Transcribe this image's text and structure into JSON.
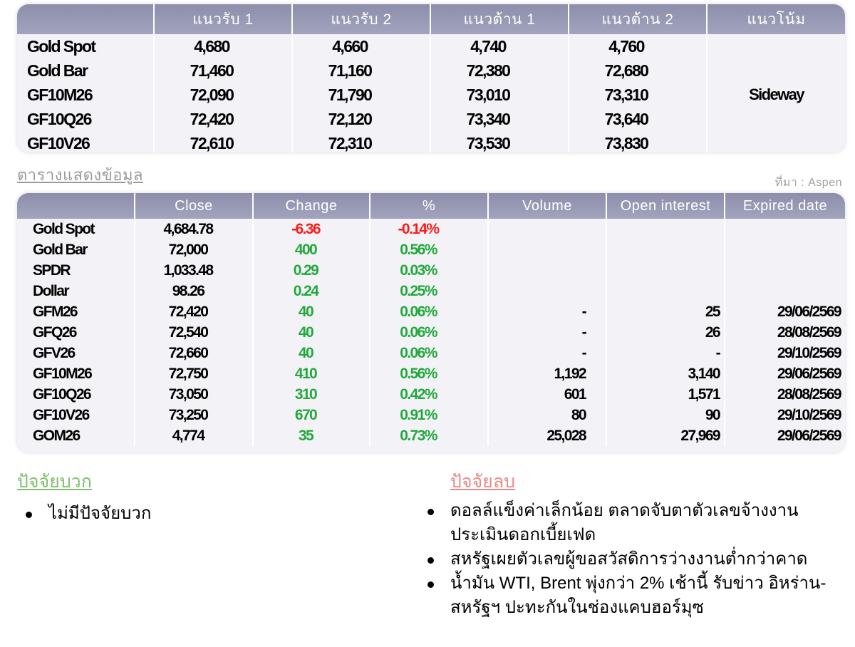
{
  "levels": {
    "headers": [
      "",
      "แนวรับ 1",
      "แนวรับ 2",
      "แนวต้าน 1",
      "แนวต้าน 2",
      "แนวโน้ม"
    ],
    "rows": [
      {
        "name": "Gold Spot",
        "s1": "4,680",
        "s2": "4,660",
        "r1": "4,740",
        "r2": "4,760"
      },
      {
        "name": "Gold Bar",
        "s1": "71,460",
        "s2": "71,160",
        "r1": "72,380",
        "r2": "72,680"
      },
      {
        "name": "GF10M26",
        "s1": "72,090",
        "s2": "71,790",
        "r1": "73,010",
        "r2": "73,310"
      },
      {
        "name": "GF10Q26",
        "s1": "72,420",
        "s2": "72,120",
        "r1": "73,340",
        "r2": "73,640"
      },
      {
        "name": "GF10V26",
        "s1": "72,610",
        "s2": "72,310",
        "r1": "73,530",
        "r2": "73,830"
      }
    ],
    "trend": "Sideway"
  },
  "caption": "ตารางแสดงข้อมูล",
  "source": "ที่มา : Aspen",
  "market": {
    "headers": [
      "",
      "Close",
      "Change",
      "%",
      "Volume",
      "Open interest",
      "Expired date"
    ],
    "rows": [
      {
        "name": "Gold Spot",
        "close": "4,684.78",
        "change": "-6.36",
        "pct": "-0.14%",
        "volume": "",
        "oi": "",
        "expiry": "",
        "dir": "neg"
      },
      {
        "name": "Gold Bar",
        "close": "72,000",
        "change": "400",
        "pct": "0.56%",
        "volume": "",
        "oi": "",
        "expiry": "",
        "dir": "pos"
      },
      {
        "name": "SPDR",
        "close": "1,033.48",
        "change": "0.29",
        "pct": "0.03%",
        "volume": "",
        "oi": "",
        "expiry": "",
        "dir": "pos"
      },
      {
        "name": "Dollar",
        "close": "98.26",
        "change": "0.24",
        "pct": "0.25%",
        "volume": "",
        "oi": "",
        "expiry": "",
        "dir": "pos"
      },
      {
        "name": "GFM26",
        "close": "72,420",
        "change": "40",
        "pct": "0.06%",
        "volume": "-",
        "oi": "25",
        "expiry": "29/06/2569",
        "dir": "pos"
      },
      {
        "name": "GFQ26",
        "close": "72,540",
        "change": "40",
        "pct": "0.06%",
        "volume": "-",
        "oi": "26",
        "expiry": "28/08/2569",
        "dir": "pos"
      },
      {
        "name": "GFV26",
        "close": "72,660",
        "change": "40",
        "pct": "0.06%",
        "volume": "-",
        "oi": "-",
        "expiry": "29/10/2569",
        "dir": "pos"
      },
      {
        "name": "GF10M26",
        "close": "72,750",
        "change": "410",
        "pct": "0.56%",
        "volume": "1,192",
        "oi": "3,140",
        "expiry": "29/06/2569",
        "dir": "pos"
      },
      {
        "name": "GF10Q26",
        "close": "73,050",
        "change": "310",
        "pct": "0.42%",
        "volume": "601",
        "oi": "1,571",
        "expiry": "28/08/2569",
        "dir": "pos"
      },
      {
        "name": "GF10V26",
        "close": "73,250",
        "change": "670",
        "pct": "0.91%",
        "volume": "80",
        "oi": "90",
        "expiry": "29/10/2569",
        "dir": "pos"
      },
      {
        "name": "GOM26",
        "close": "4,774",
        "change": "35",
        "pct": "0.73%",
        "volume": "25,028",
        "oi": "27,969",
        "expiry": "29/06/2569",
        "dir": "pos"
      }
    ]
  },
  "positive": {
    "title": "ปัจจัยบวก",
    "items": [
      "ไม่มีปัจจัยบวก"
    ]
  },
  "negative": {
    "title": "ปัจจัยลบ",
    "items": [
      "ดอลล์แข็งค่าเล็กน้อย ตลาดจับตาตัวเลขจ้างงาน ประเมินดอกเบี้ยเฟด",
      "สหรัฐเผยตัวเลขผู้ขอสวัสดิการว่างงานต่ำกว่าคาด",
      "น้ำมัน WTI, Brent พุ่งกว่า 2% เช้านี้ รับข่าว อิหร่าน-สหรัฐฯ ปะทะกันในช่องแคบฮอร์มุซ"
    ]
  },
  "colors": {
    "header": "#9899b4",
    "cell": "#f3f3f7",
    "negative": "#ff1a1a",
    "positive": "#22a83c",
    "pos_title": "#7cc06a",
    "neg_title": "#e88a86"
  }
}
